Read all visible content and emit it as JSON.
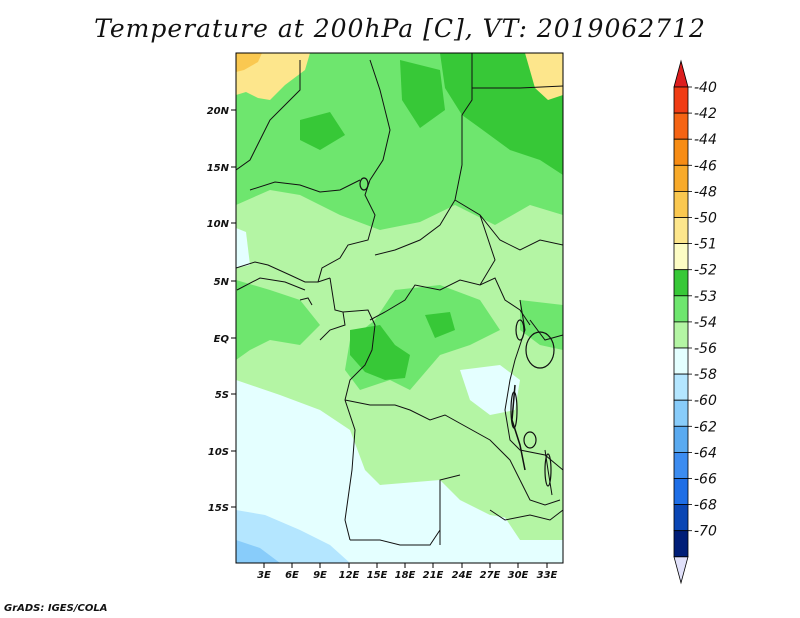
{
  "title": "Temperature at 200hPa [C], VT: 2019062712",
  "footer": "GrADS: IGES/COLA",
  "map": {
    "lat_labels": [
      "20N",
      "15N",
      "10N",
      "5N",
      "EQ",
      "5S",
      "10S",
      "15S"
    ],
    "lon_labels": [
      "3E",
      "6E",
      "9E",
      "12E",
      "15E",
      "18E",
      "21E",
      "24E",
      "27E",
      "30E",
      "33E"
    ]
  },
  "legend": {
    "labels": [
      "-40",
      "-42",
      "-44",
      "-46",
      "-48",
      "-50",
      "-51",
      "-52",
      "-53",
      "-54",
      "-56",
      "-58",
      "-60",
      "-62",
      "-64",
      "-66",
      "-68",
      "-70"
    ],
    "colors": [
      "#f03c14",
      "#f56414",
      "#f78c14",
      "#f8aa2a",
      "#fac850",
      "#fde68c",
      "#fdfcc4",
      "#37c837",
      "#6ee66e",
      "#b4f5a4",
      "#e4ffff",
      "#b4e6ff",
      "#88ccfa",
      "#5aaaf0",
      "#3c8cf0",
      "#1e6ee6",
      "#0a46b4",
      "#001e78"
    ],
    "top_arrow_color": "#dc1e1e",
    "bottom_arrow_color": "#e1e1fa"
  }
}
